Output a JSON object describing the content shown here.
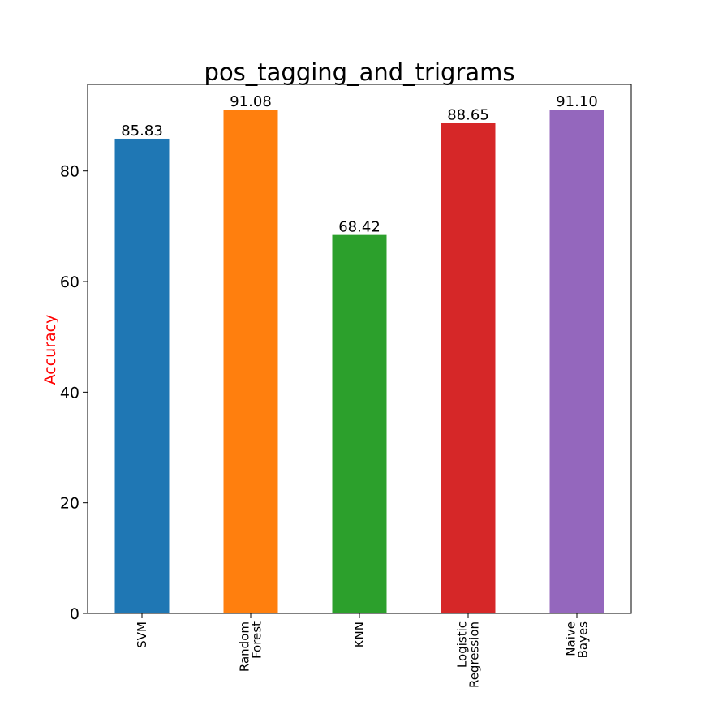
{
  "chart_data": {
    "type": "bar",
    "title": "pos_tagging_and_trigrams",
    "xlabel": "",
    "ylabel": "Accuracy",
    "ylabel_color": "#ff0000",
    "categories": [
      [
        "SVM"
      ],
      [
        "Random",
        "Forest"
      ],
      [
        "KNN"
      ],
      [
        "Logistic",
        "Regression"
      ],
      [
        "Naive",
        "Bayes"
      ]
    ],
    "values": [
      85.83,
      91.08,
      68.42,
      88.65,
      91.1
    ],
    "data_labels": [
      "85.83",
      "91.08",
      "68.42",
      "88.65",
      "91.10"
    ],
    "colors": [
      "#1f77b4",
      "#ff7f0e",
      "#2ca02c",
      "#d62728",
      "#9467bd"
    ],
    "ylim": [
      0,
      95.655
    ],
    "yticks": [
      0,
      20,
      40,
      60,
      80
    ],
    "grid": false,
    "legend": "none"
  }
}
